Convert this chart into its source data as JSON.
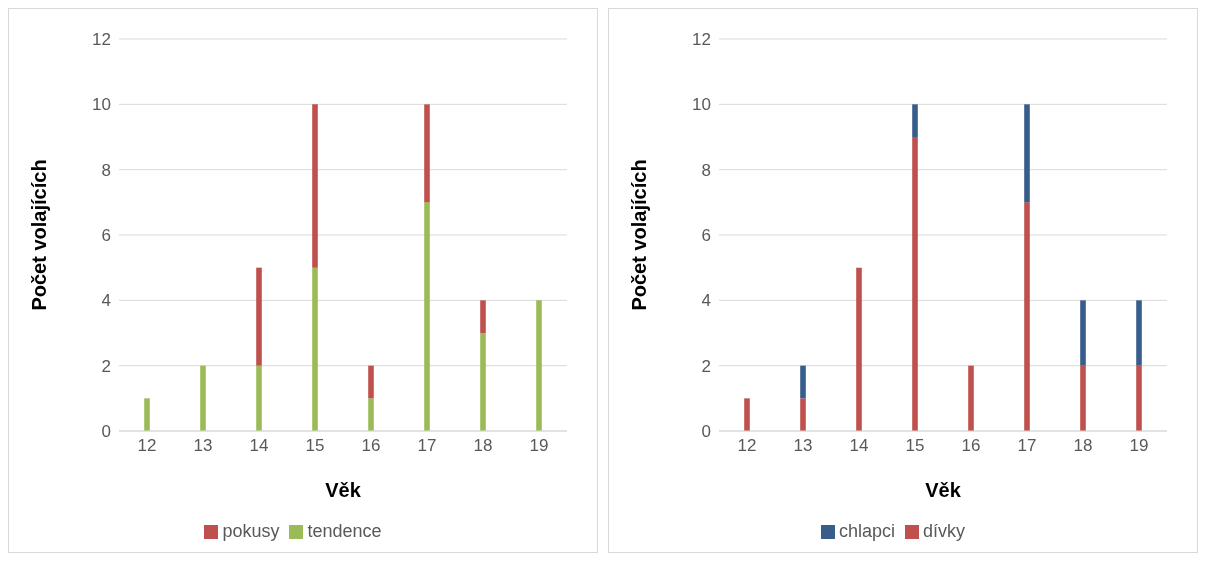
{
  "chart_data": [
    {
      "type": "bar",
      "stacked": true,
      "xlabel": "Věk",
      "ylabel": "Počet volajících",
      "categories": [
        "12",
        "13",
        "14",
        "15",
        "16",
        "17",
        "18",
        "19"
      ],
      "ylim": [
        0,
        12
      ],
      "yticks": [
        0,
        2,
        4,
        6,
        8,
        10,
        12
      ],
      "grid": "y",
      "legend": "bottom",
      "series": [
        {
          "name": "tendence",
          "color": "#9bbb59",
          "values": [
            1,
            2,
            2,
            5,
            1,
            7,
            3,
            4
          ]
        },
        {
          "name": "pokusy",
          "color": "#c0504d",
          "values": [
            0,
            0,
            3,
            5,
            1,
            3,
            1,
            0
          ]
        }
      ]
    },
    {
      "type": "bar",
      "stacked": true,
      "xlabel": "Věk",
      "ylabel": "Počet volajících",
      "categories": [
        "12",
        "13",
        "14",
        "15",
        "16",
        "17",
        "18",
        "19"
      ],
      "ylim": [
        0,
        12
      ],
      "yticks": [
        0,
        2,
        4,
        6,
        8,
        10,
        12
      ],
      "grid": "y",
      "legend": "bottom",
      "series": [
        {
          "name": "dívky",
          "color": "#c0504d",
          "values": [
            1,
            1,
            5,
            9,
            2,
            7,
            2,
            2
          ]
        },
        {
          "name": "chlapci",
          "color": "#385d8a",
          "values": [
            0,
            1,
            0,
            1,
            0,
            3,
            2,
            2
          ]
        }
      ]
    }
  ]
}
